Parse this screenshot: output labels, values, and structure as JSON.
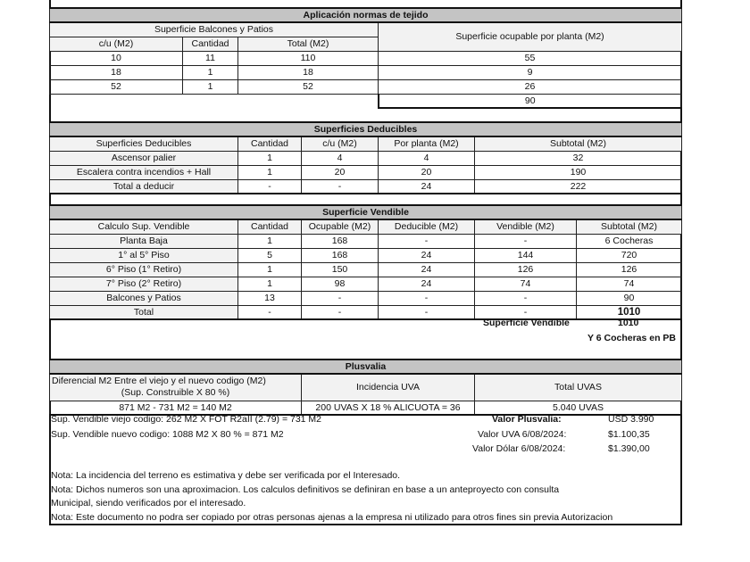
{
  "tejido": {
    "title": "Aplicación normas de tejido",
    "group_header": "Superficie Balcones y Patios",
    "ocupable_header": "Superficie ocupable por planta (M2)",
    "columns": [
      "c/u (M2)",
      "Cantidad",
      "Total (M2)"
    ],
    "rows": [
      [
        "10",
        "11",
        "110",
        "55"
      ],
      [
        "18",
        "1",
        "18",
        "9"
      ],
      [
        "52",
        "1",
        "52",
        "26"
      ]
    ],
    "total": "90"
  },
  "deducibles": {
    "title": "Superficies Deducibles",
    "columns": [
      "Superficies Deducibles",
      "Cantidad",
      "c/u (M2)",
      "Por planta (M2)",
      "Subtotal (M2)"
    ],
    "rows": [
      [
        "Ascensor palier",
        "1",
        "4",
        "4",
        "32"
      ],
      [
        "Escalera contra incendios + Hall",
        "1",
        "20",
        "20",
        "190"
      ],
      [
        "Total a deducir",
        "-",
        "-",
        "24",
        "222"
      ]
    ]
  },
  "vendible": {
    "title": "Superficie Vendible",
    "columns": [
      "Calculo Sup. Vendible",
      "Cantidad",
      "Ocupable (M2)",
      "Deducible (M2)",
      "Vendible (M2)",
      "Subtotal (M2)"
    ],
    "rows": [
      [
        "Planta Baja",
        "1",
        "168",
        "-",
        "-",
        "6 Cocheras"
      ],
      [
        "1° al 5° Piso",
        "5",
        "168",
        "24",
        "144",
        "720"
      ],
      [
        "6° Piso (1° Retiro)",
        "1",
        "150",
        "24",
        "126",
        "126"
      ],
      [
        "7° Piso (2° Retiro)",
        "1",
        "98",
        "24",
        "74",
        "74"
      ],
      [
        "Balcones y Patios",
        "13",
        "-",
        "-",
        "-",
        "90"
      ],
      [
        "Total",
        "-",
        "-",
        "-",
        "-",
        "1010"
      ]
    ],
    "summary_label": "Superficie Vendible",
    "summary_value": "1010",
    "cocheras_note": "Y 6 Cocheras en PB"
  },
  "plusvalia": {
    "title": "Plusvalia",
    "columns": [
      "Diferencial M2 Entre el viejo y el nuevo codigo (M2)",
      "(Sup. Construible X 80 %)",
      "Incidencia UVA",
      "Total UVAS"
    ],
    "row": [
      "871 M2 - 731 M2 = 140 M2",
      "200 UVAS X 18 % ALICUOTA = 36",
      "5.040  UVAS"
    ],
    "lines": [
      "Sup. Vendible viejo codigo: 262 M2 X FOT R2aII (2.79) = 731 M2",
      "Sup. Vendible nuevo codigo: 1088 M2 X 80 % = 871 M2"
    ],
    "values": [
      {
        "label": "Valor Plusvalia:",
        "value": "USD 3.990"
      },
      {
        "label": "Valor UVA 6/08/2024:",
        "value": "$1.100,35"
      },
      {
        "label": "Valor Dólar 6/08/2024:",
        "value": "$1.390,00"
      }
    ]
  },
  "notes": [
    "Nota: La incidencia del terreno es estimativa y debe ser verificada por el Interesado.",
    "Nota: Dichos numeros son una aproximacion. Los calculos definitivos se definiran en base a un anteproyecto con consulta",
    "Municipal, siendo verificados por el interesado.",
    "Nota: Este documento no podra ser copiado por otras personas ajenas a la empresa ni utilizado para otros fines sin previa Autorizacion"
  ]
}
